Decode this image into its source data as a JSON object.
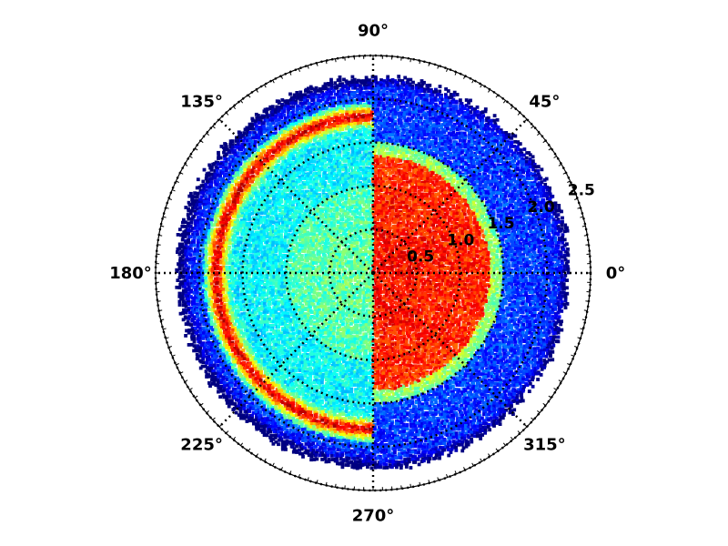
{
  "chart_data": {
    "type": "scatter",
    "projection": "polar",
    "title": "",
    "angle_unit": "degrees",
    "angle_ticks": [
      {
        "value": 0,
        "label": "0°"
      },
      {
        "value": 45,
        "label": "45°"
      },
      {
        "value": 90,
        "label": "90°"
      },
      {
        "value": 135,
        "label": "135°"
      },
      {
        "value": 180,
        "label": "180°"
      },
      {
        "value": 225,
        "label": "225°"
      },
      {
        "value": 270,
        "label": "270°"
      },
      {
        "value": 315,
        "label": "315°"
      }
    ],
    "radial_ticks": [
      {
        "value": 0.5,
        "label": "0.5"
      },
      {
        "value": 1.0,
        "label": "1.0"
      },
      {
        "value": 1.5,
        "label": "1.5"
      },
      {
        "value": 2.0,
        "label": "2.0"
      },
      {
        "value": 2.5,
        "label": "2.5"
      }
    ],
    "rlim": [
      0,
      2.5
    ],
    "data_extent_r": 2.25,
    "radial_label_angle": 22.5,
    "grid": true,
    "grid_style": "dotted",
    "colormap": "jet",
    "halves": [
      {
        "side": "left",
        "theta_range": [
          90,
          270
        ],
        "description_density": "ring",
        "ring_radius": 1.8,
        "ring_width": 0.07,
        "base_level": 0.42
      },
      {
        "side": "right",
        "theta_range": [
          -90,
          90
        ],
        "description_density": "central-disc",
        "disc_radius": 1.35,
        "core_level": 0.88,
        "outer_level": 0.2
      }
    ]
  }
}
